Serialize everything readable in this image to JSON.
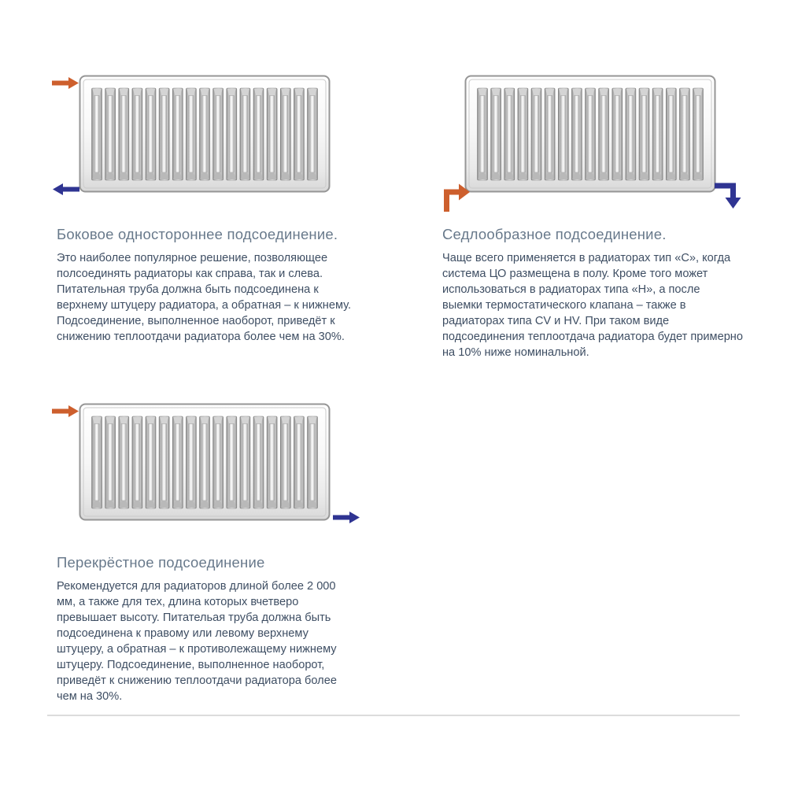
{
  "colors": {
    "supply_arrow": "#cd5f2d",
    "return_arrow": "#2f3492",
    "title_text": "#68798b",
    "body_text": "#3e4e63",
    "divider": "#dcdcdc"
  },
  "sections": [
    {
      "title": "Боковое одностороннее подсоединение.",
      "body": "Это наиболее популярное решение, позволяющее полсоединять радиаторы как справа, так и слева. Питательная труба должна быть подсоединена к верхнему штуцеру радиатора, а обратная – к нижнему. Подсоединение, выполненное наоборот, приведёт к снижению теплоотдачи радиатора более чем на 30%.",
      "figure": {
        "kind": "panel-radiator-diagram",
        "channels": 17,
        "supply_arrow": "straight-right-top-left",
        "return_arrow": "straight-left-bottom-left"
      }
    },
    {
      "title": "Седлообразное подсоединение.",
      "body": "Чаще всего применяется в радиаторах тип «С», когда система ЦО размещена в полу. Кроме того может использоваться в радиаторах типа «Н», а после выемки термостатического клапана – также в радиаторах типа CV и HV. При таком виде подсоединения теплоотдача радиатора будет примерно на 10% ниже номинальной.",
      "figure": {
        "kind": "panel-radiator-diagram",
        "channels": 17,
        "supply_arrow": "bent-up-right-bottom-left",
        "return_arrow": "bent-right-down-bottom-right"
      }
    },
    {
      "title": "Перекрёстное подсоединение",
      "body": "Рекомендуется для радиаторов длиной более 2 000 мм, а также для тех, длина которых вчетверо превышает высоту. Питательая труба должна быть подсоединена к правому или левому верхнему штуцеру, а обратная – к противолежащему нижнему штуцеру. Подсоединение, выполненное наоборот, приведёт к снижению теплоотдачи радиатора более чем на 30%.",
      "figure": {
        "kind": "panel-radiator-diagram",
        "channels": 17,
        "supply_arrow": "straight-right-top-left",
        "return_arrow": "straight-right-bottom-right"
      }
    }
  ]
}
